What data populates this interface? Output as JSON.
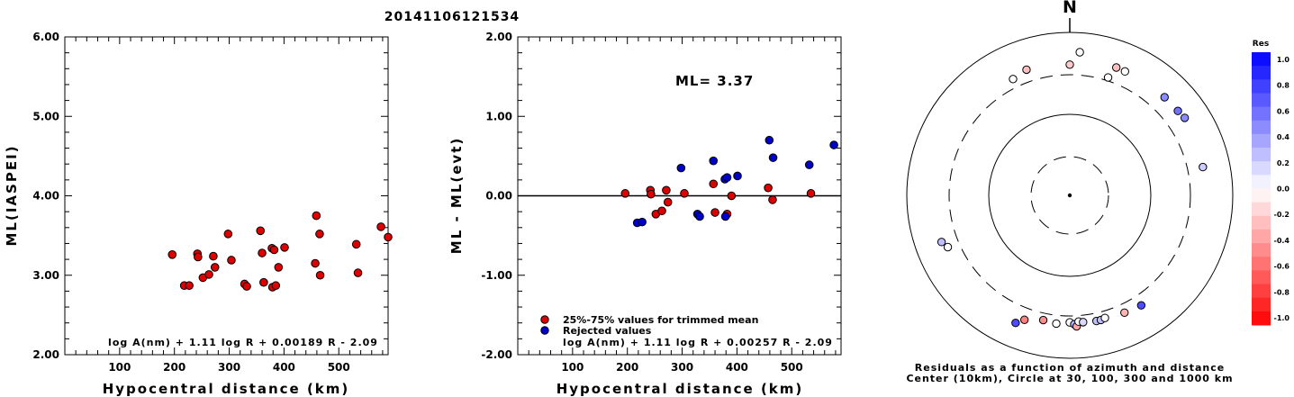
{
  "title": "20141106121534",
  "chart_data": [
    {
      "type": "scatter",
      "ylabel": "ML(IASPEI)",
      "xlabel": "Hypocentral distance (km)",
      "xlim": [
        0,
        590
      ],
      "ylim": [
        2.0,
        6.0
      ],
      "xticks": [
        "100",
        "200",
        "300",
        "400",
        "500"
      ],
      "yticks": [
        "2.00",
        "3.00",
        "4.00",
        "5.00",
        "6.00"
      ],
      "formula": "log A(nm) + 1.11 log R + 0.00189 R - 2.09",
      "series": [
        {
          "color": "#dd0000",
          "points": [
            [
              196,
              3.26
            ],
            [
              218,
              2.87
            ],
            [
              227,
              2.87
            ],
            [
              242,
              3.27
            ],
            [
              243,
              3.23
            ],
            [
              252,
              2.97
            ],
            [
              263,
              3.01
            ],
            [
              271,
              3.24
            ],
            [
              274,
              3.1
            ],
            [
              298,
              3.52
            ],
            [
              304,
              3.19
            ],
            [
              328,
              2.89
            ],
            [
              332,
              2.86
            ],
            [
              357,
              3.56
            ],
            [
              360,
              3.28
            ],
            [
              363,
              2.91
            ],
            [
              378,
              3.34
            ],
            [
              379,
              2.85
            ],
            [
              382,
              3.32
            ],
            [
              385,
              2.87
            ],
            [
              390,
              3.1
            ],
            [
              401,
              3.35
            ],
            [
              457,
              3.15
            ],
            [
              459,
              3.75
            ],
            [
              465,
              3.52
            ],
            [
              466,
              3.0
            ],
            [
              532,
              3.39
            ],
            [
              535,
              3.03
            ],
            [
              577,
              3.61
            ],
            [
              590,
              3.48
            ]
          ]
        }
      ]
    },
    {
      "type": "scatter",
      "ylabel": "ML - ML(evt)",
      "xlabel": "Hypocentral distance (km)",
      "xlim": [
        0,
        590
      ],
      "ylim": [
        -2.0,
        2.0
      ],
      "xticks": [
        "100",
        "200",
        "300",
        "400",
        "500"
      ],
      "yticks": [
        "-2.00",
        "-1.00",
        "0.00",
        "1.00",
        "2.00"
      ],
      "ml_label": "ML= 3.37",
      "formula": "log A(nm) + 1.11 log R + 0.00257 R - 2.09",
      "legend": [
        "25%-75% values for trimmed mean",
        "Rejected values"
      ],
      "series": [
        {
          "name": "25%-75% values for trimmed mean",
          "color": "#dd0000",
          "points": [
            [
              196,
              0.03
            ],
            [
              242,
              0.07
            ],
            [
              243,
              0.02
            ],
            [
              252,
              -0.23
            ],
            [
              263,
              -0.19
            ],
            [
              271,
              0.07
            ],
            [
              274,
              -0.08
            ],
            [
              304,
              0.03
            ],
            [
              357,
              0.15
            ],
            [
              360,
              -0.21
            ],
            [
              382,
              -0.23
            ],
            [
              390,
              0.0
            ],
            [
              457,
              0.1
            ],
            [
              465,
              -0.05
            ],
            [
              535,
              0.03
            ]
          ]
        },
        {
          "name": "Rejected values",
          "color": "#0000cc",
          "points": [
            [
              218,
              -0.34
            ],
            [
              227,
              -0.33
            ],
            [
              298,
              0.35
            ],
            [
              328,
              -0.23
            ],
            [
              332,
              -0.26
            ],
            [
              357,
              0.44
            ],
            [
              378,
              0.21
            ],
            [
              379,
              -0.26
            ],
            [
              382,
              0.23
            ],
            [
              401,
              0.25
            ],
            [
              459,
              0.7
            ],
            [
              466,
              0.48
            ],
            [
              532,
              0.39
            ],
            [
              577,
              0.64
            ]
          ]
        }
      ]
    },
    {
      "type": "scatter",
      "subtype": "polar",
      "north_label": "N",
      "caption_line1": "Residuals as a function of azimuth and distance",
      "caption_line2": "Center (10km), Circle at 30, 100, 300 and 1000 km",
      "colorbar": {
        "title": "Res",
        "labels": [
          "1.0",
          "0.8",
          "0.6",
          "0.4",
          "0.2",
          "0.0",
          "-0.2",
          "-0.4",
          "-0.6",
          "-0.8",
          "-1.0"
        ]
      },
      "points": [
        {
          "az": 4,
          "dist": 575,
          "res": 0.0
        },
        {
          "az": 0,
          "dist": 400,
          "res": -0.2
        },
        {
          "az": 341,
          "dist": 425,
          "res": -0.25
        },
        {
          "az": 334,
          "dist": 385,
          "res": 0.0
        },
        {
          "az": 20,
          "dist": 465,
          "res": -0.25
        },
        {
          "az": 24,
          "dist": 460,
          "res": 0.0
        },
        {
          "az": 18,
          "dist": 330,
          "res": 0.0
        },
        {
          "az": 44,
          "dist": 470,
          "res": 0.45
        },
        {
          "az": 52,
          "dist": 480,
          "res": 0.55
        },
        {
          "az": 56,
          "dist": 500,
          "res": 0.45
        },
        {
          "az": 78,
          "dist": 465,
          "res": 0.2
        },
        {
          "az": 250,
          "dist": 470,
          "res": 0.25
        },
        {
          "az": 247,
          "dist": 420,
          "res": 0.0
        },
        {
          "az": 200,
          "dist": 420,
          "res": -0.5
        },
        {
          "az": 192,
          "dist": 365,
          "res": -0.45
        },
        {
          "az": 186,
          "dist": 380,
          "res": 0.0
        },
        {
          "az": 180,
          "dist": 360,
          "res": 0.0
        },
        {
          "az": 178,
          "dist": 380,
          "res": 0.3
        },
        {
          "az": 177,
          "dist": 405,
          "res": -0.35
        },
        {
          "az": 176,
          "dist": 355,
          "res": 0.0
        },
        {
          "az": 174,
          "dist": 365,
          "res": 0.15
        },
        {
          "az": 168,
          "dist": 375,
          "res": 0.25
        },
        {
          "az": 166,
          "dist": 375,
          "res": 0.25
        },
        {
          "az": 164,
          "dist": 365,
          "res": 0.0
        },
        {
          "az": 155,
          "dist": 385,
          "res": -0.3
        },
        {
          "az": 147,
          "dist": 405,
          "res": 0.7
        },
        {
          "az": 203,
          "dist": 500,
          "res": 0.7
        }
      ]
    }
  ]
}
